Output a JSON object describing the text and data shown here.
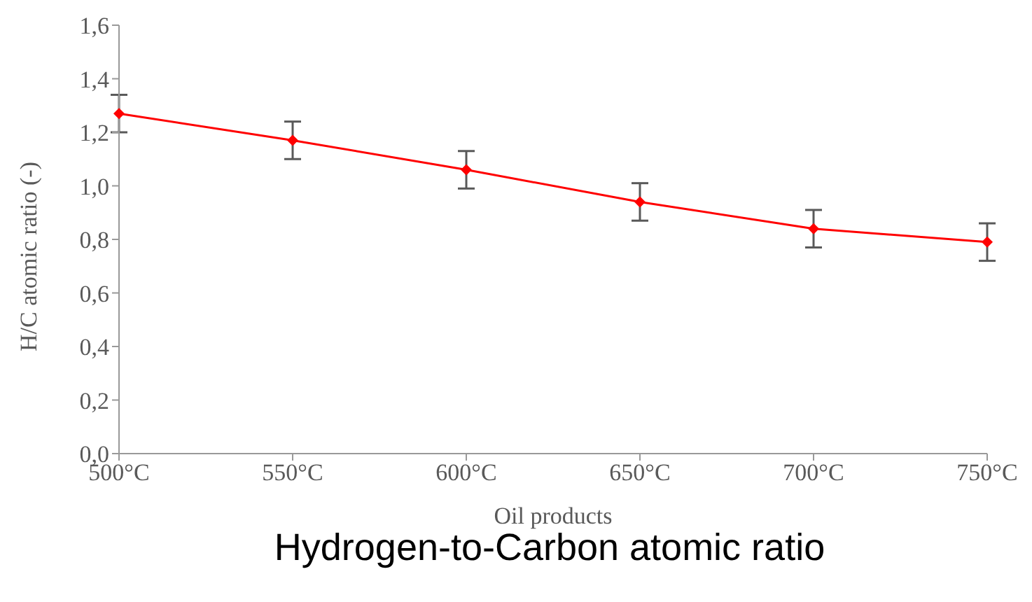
{
  "chart_data": {
    "type": "line",
    "title": "Hydrogen-to-Carbon atomic ratio",
    "xlabel": "Oil products",
    "ylabel": "H/C atomic ratio (-)",
    "categories": [
      "500°C",
      "550°C",
      "600°C",
      "650°C",
      "700°C",
      "750°C"
    ],
    "series": [
      {
        "color": "#ff0000",
        "values": [
          1.27,
          1.17,
          1.06,
          0.94,
          0.84,
          0.79
        ],
        "errors": [
          0.07,
          0.07,
          0.07,
          0.07,
          0.07,
          0.07
        ]
      }
    ],
    "ylim": [
      0,
      1.6
    ],
    "yticks": [
      {
        "value": 0,
        "label": "0,0"
      },
      {
        "value": 0.2,
        "label": "0,2"
      },
      {
        "value": 0.4,
        "label": "0,4"
      },
      {
        "value": 0.6,
        "label": "0,6"
      },
      {
        "value": 0.8,
        "label": "0,8"
      },
      {
        "value": 1,
        "label": "1,0"
      },
      {
        "value": 1.2,
        "label": "1,2"
      },
      {
        "value": 1.4,
        "label": "1,4"
      },
      {
        "value": 1.6,
        "label": "1,6"
      }
    ],
    "grid": false,
    "legend": false,
    "marker": "diamond",
    "line_style": "solid"
  }
}
